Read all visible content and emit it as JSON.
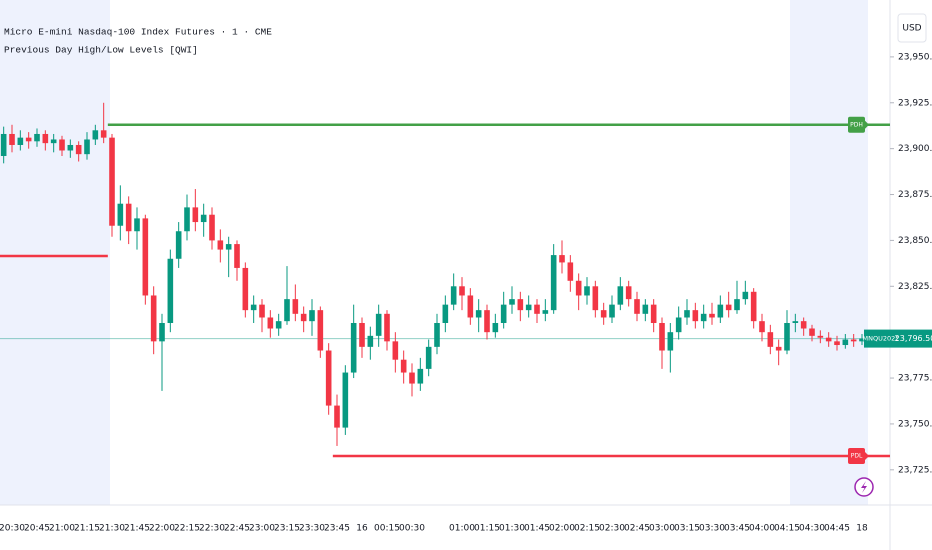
{
  "chart_data": {
    "type": "candlestick",
    "title": "Micro E-mini Nasdaq-100 Index Futures · 1 · CME",
    "subtitle": "Previous Day High/Low Levels [QWI]",
    "currency": "USD",
    "categories": [
      null,
      "20:30",
      null,
      null,
      "20:45",
      null,
      null,
      "21:00",
      null,
      null,
      "21:15",
      null,
      null,
      "21:30",
      null,
      null,
      "21:45",
      null,
      null,
      "22:00",
      null,
      null,
      "22:15",
      null,
      null,
      "22:30",
      null,
      null,
      "22:45",
      null,
      null,
      "23:00",
      null,
      null,
      "23:15",
      null,
      null,
      "23:30",
      null,
      null,
      "23:45",
      null,
      null,
      "16",
      null,
      null,
      "00:15",
      null,
      null,
      "00:30",
      null,
      null,
      null,
      null,
      null,
      "01:00",
      null,
      null,
      "01:15",
      null,
      null,
      "01:30",
      null,
      null,
      "01:45",
      null,
      null,
      "02:00",
      null,
      null,
      "02:15",
      null,
      null,
      "02:30",
      null,
      null,
      "02:45",
      null,
      null,
      "03:00",
      null,
      null,
      "03:15",
      null,
      null,
      "03:30",
      null,
      null,
      "03:45",
      null,
      null,
      "04:00",
      null,
      null,
      "04:15",
      null,
      null,
      "04:30",
      null,
      null,
      "04:45",
      null,
      null,
      "18"
    ],
    "open": [
      23896,
      23908,
      23902,
      23906,
      23904,
      23908,
      23903,
      23905,
      23899,
      23902,
      23897,
      23905,
      23910,
      23906,
      23858,
      23870,
      23855,
      23862,
      23820,
      23795,
      23805,
      23840,
      23855,
      23868,
      23860,
      23864,
      23850,
      23845,
      23848,
      23835,
      23812,
      23815,
      23808,
      23802,
      23806,
      23818,
      23810,
      23806,
      23812,
      23790,
      23760,
      23748,
      23778,
      23805,
      23792,
      23798,
      23810,
      23795,
      23785,
      23778,
      23772,
      23780,
      23792,
      23805,
      23815,
      23825,
      23820,
      23808,
      23812,
      23800,
      23805,
      23815,
      23818,
      23812,
      23815,
      23810,
      23812,
      23842,
      23838,
      23828,
      23820,
      23825,
      23812,
      23808,
      23815,
      23825,
      23818,
      23810,
      23815,
      23805,
      23790,
      23800,
      23808,
      23812,
      23806,
      23810,
      23808,
      23815,
      23812,
      23818,
      23822,
      23806,
      23800,
      23792,
      23790,
      23805,
      23806,
      23802,
      23798,
      23797,
      23795,
      23793,
      23796,
      23795
    ],
    "high": [
      23912,
      23913,
      23910,
      23909,
      23911,
      23910,
      23908,
      23907,
      23905,
      23904,
      23909,
      23913,
      23925,
      23908,
      23880,
      23874,
      23868,
      23864,
      23825,
      23810,
      23845,
      23860,
      23875,
      23878,
      23870,
      23868,
      23856,
      23852,
      23850,
      23838,
      23820,
      23818,
      23812,
      23810,
      23836,
      23826,
      23814,
      23818,
      23814,
      23794,
      23766,
      23782,
      23815,
      23808,
      23803,
      23815,
      23812,
      23800,
      23790,
      23783,
      23786,
      23796,
      23810,
      23820,
      23832,
      23830,
      23824,
      23818,
      23815,
      23810,
      23822,
      23825,
      23822,
      23820,
      23818,
      23818,
      23848,
      23850,
      23842,
      23832,
      23830,
      23828,
      23816,
      23820,
      23830,
      23828,
      23822,
      23818,
      23818,
      23808,
      23805,
      23814,
      23818,
      23816,
      23815,
      23816,
      23820,
      23822,
      23828,
      23828,
      23824,
      23810,
      23804,
      23796,
      23812,
      23810,
      23808,
      23804,
      23801,
      23800,
      23798,
      23799,
      23799,
      23799
    ],
    "low": [
      23892,
      23898,
      23899,
      23900,
      23901,
      23899,
      23898,
      23896,
      23895,
      23893,
      23894,
      23902,
      23903,
      23852,
      23850,
      23848,
      23845,
      23815,
      23788,
      23768,
      23800,
      23835,
      23850,
      23855,
      23852,
      23845,
      23838,
      23830,
      23828,
      23808,
      23805,
      23800,
      23797,
      23798,
      23804,
      23806,
      23800,
      23798,
      23786,
      23755,
      23738,
      23744,
      23775,
      23786,
      23785,
      23792,
      23790,
      23778,
      23772,
      23765,
      23768,
      23776,
      23788,
      23800,
      23812,
      23812,
      23804,
      23800,
      23796,
      23797,
      23802,
      23810,
      23806,
      23808,
      23805,
      23806,
      23810,
      23832,
      23822,
      23812,
      23815,
      23808,
      23804,
      23805,
      23812,
      23814,
      23806,
      23806,
      23800,
      23780,
      23778,
      23796,
      23804,
      23802,
      23802,
      23804,
      23805,
      23808,
      23810,
      23815,
      23802,
      23795,
      23788,
      23782,
      23788,
      23800,
      23798,
      23795,
      23794,
      23792,
      23790,
      23791,
      23792,
      23793
    ],
    "close": [
      23908,
      23902,
      23906,
      23904,
      23908,
      23903,
      23905,
      23899,
      23902,
      23897,
      23905,
      23910,
      23906,
      23858,
      23870,
      23855,
      23862,
      23820,
      23795,
      23805,
      23840,
      23855,
      23868,
      23860,
      23864,
      23850,
      23845,
      23848,
      23835,
      23812,
      23815,
      23808,
      23802,
      23806,
      23818,
      23810,
      23806,
      23812,
      23790,
      23760,
      23748,
      23778,
      23805,
      23792,
      23798,
      23810,
      23795,
      23785,
      23778,
      23772,
      23780,
      23792,
      23805,
      23815,
      23825,
      23820,
      23808,
      23812,
      23800,
      23805,
      23815,
      23818,
      23812,
      23815,
      23810,
      23812,
      23842,
      23838,
      23828,
      23820,
      23825,
      23812,
      23808,
      23815,
      23825,
      23818,
      23810,
      23815,
      23805,
      23790,
      23800,
      23808,
      23812,
      23806,
      23810,
      23808,
      23815,
      23812,
      23818,
      23822,
      23806,
      23800,
      23792,
      23790,
      23805,
      23806,
      23802,
      23798,
      23797,
      23795,
      23793,
      23796,
      23795,
      23796.5
    ],
    "up_color": "#089981",
    "down_color": "#f23645",
    "levels": [
      {
        "label": "PDH",
        "value": 23913,
        "start": 13,
        "color": "#43a047"
      },
      {
        "label": "PDL",
        "value": 23732.5,
        "start": 40,
        "color": "#f23645"
      },
      {
        "value": 23841.5,
        "start": 0,
        "end": 13,
        "color": "#f23645"
      }
    ],
    "last_price": {
      "symbol": "MNQU2025",
      "value": 23796.5,
      "label": "23,796.50",
      "color": "#089981"
    },
    "ylim": [
      23714,
      23981
    ],
    "yticks": [
      {
        "value": 23950,
        "label": "23,950.00"
      },
      {
        "value": 23925,
        "label": "23,925.00"
      },
      {
        "value": 23900,
        "label": "23,900.00"
      },
      {
        "value": 23875,
        "label": "23,875.00"
      },
      {
        "value": 23850,
        "label": "23,850.00"
      },
      {
        "value": 23825,
        "label": "23,825.00"
      },
      {
        "value": 23775,
        "label": "23,775.00"
      },
      {
        "value": 23750,
        "label": "23,750.00"
      },
      {
        "value": 23725,
        "label": "23,725.00"
      }
    ]
  }
}
